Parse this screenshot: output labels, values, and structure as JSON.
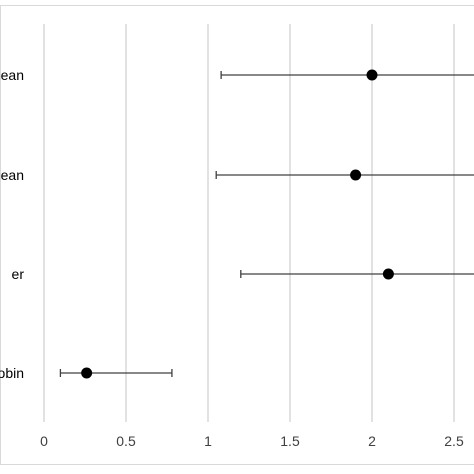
{
  "chart_data": {
    "type": "scatter",
    "subtype": "forest-plot-with-error-bars",
    "orientation": "horizontal",
    "categories": [
      "ean",
      "ean",
      "er",
      "obin"
    ],
    "points": [
      {
        "label": "ean",
        "value": 2.0,
        "lower": 1.08,
        "upper": null
      },
      {
        "label": "ean",
        "value": 1.9,
        "lower": 1.05,
        "upper": null
      },
      {
        "label": "er",
        "value": 2.1,
        "lower": 1.2,
        "upper": null
      },
      {
        "label": "obin",
        "value": 0.26,
        "lower": 0.1,
        "upper": 0.78
      }
    ],
    "x_ticks": [
      "0",
      "0.5",
      "1",
      "1.5",
      "2",
      "2.5"
    ],
    "x_tick_values": [
      0,
      0.5,
      1,
      1.5,
      2,
      2.5
    ],
    "xlim_visible": [
      0,
      2.5
    ],
    "grid": "vertical",
    "legend": "none",
    "title": "",
    "xlabel": "",
    "ylabel": "",
    "colors": {
      "marker": "#000000",
      "errorbar": "#404040",
      "grid": "#d9d9d9",
      "text": "#404040",
      "frame": "#d9d9d9"
    }
  }
}
